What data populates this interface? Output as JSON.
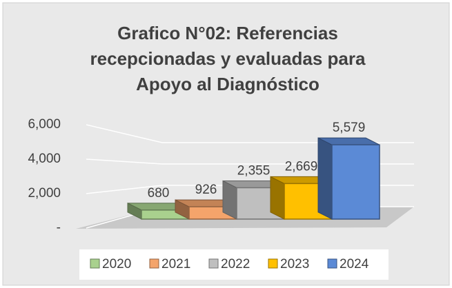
{
  "chart_data": {
    "type": "bar3d",
    "title": "Grafico N°02: Referencias recepcionadas y evaluadas para Apoyo al Diagnóstico",
    "series": [
      {
        "name": "2020",
        "color": "#a9d18e",
        "values": [
          680
        ],
        "value_labels": [
          "680"
        ]
      },
      {
        "name": "2021",
        "color": "#f4a46b",
        "values": [
          926
        ],
        "value_labels": [
          "926"
        ]
      },
      {
        "name": "2022",
        "color": "#bfbfbf",
        "values": [
          2355
        ],
        "value_labels": [
          "2,355"
        ]
      },
      {
        "name": "2023",
        "color": "#ffc000",
        "values": [
          2669
        ],
        "value_labels": [
          "2,669"
        ]
      },
      {
        "name": "2024",
        "color": "#5b8ad6",
        "values": [
          5579
        ],
        "value_labels": [
          "5,579"
        ]
      }
    ],
    "ylim": [
      0,
      6000
    ],
    "yticks": [
      {
        "value": 0,
        "label": "-"
      },
      {
        "value": 2000,
        "label": "2,000"
      },
      {
        "value": 4000,
        "label": "4,000"
      },
      {
        "value": 6000,
        "label": "6,000"
      }
    ],
    "grid": true,
    "legend": "bottom"
  }
}
